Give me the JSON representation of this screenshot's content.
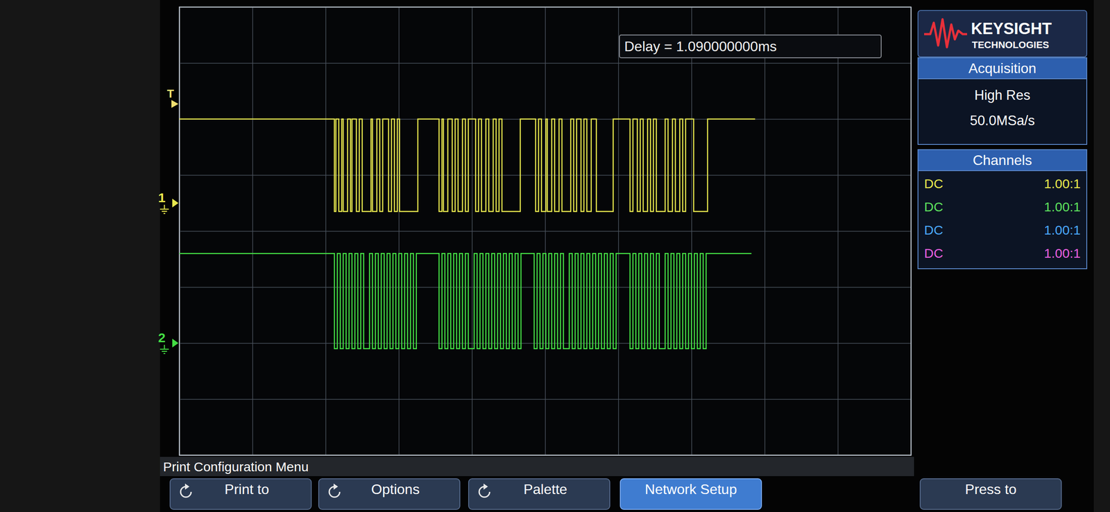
{
  "chart_data": {
    "type": "line",
    "line_style": "step",
    "annotations": [
      "Delay = 1.090000000ms"
    ],
    "xlim": [
      0,
      10
    ],
    "ylim": [
      0,
      8
    ],
    "xticks": [
      0,
      1,
      2,
      3,
      4,
      5,
      6,
      7,
      8,
      9,
      10
    ],
    "yticks": [
      0,
      1,
      2,
      3,
      4,
      5,
      6,
      7,
      8
    ],
    "grid": true,
    "tick_labels": false,
    "trigger": {
      "label": "T",
      "value": 6.27
    },
    "series": [
      {
        "name": "1",
        "color": "#e8e84e",
        "offset": 4.5,
        "x": [
          0,
          2.12,
          2.14,
          2.18,
          2.22,
          2.24,
          2.3,
          2.34,
          2.36,
          2.42,
          2.46,
          2.5,
          2.62,
          2.64,
          2.7,
          2.74,
          2.78,
          2.86,
          2.9,
          2.94,
          2.98,
          3.01,
          3.26,
          3.55,
          3.59,
          3.61,
          3.67,
          3.73,
          3.77,
          3.81,
          3.87,
          3.91,
          3.95,
          4.05,
          4.09,
          4.13,
          4.19,
          4.23,
          4.29,
          4.33,
          4.37,
          4.41,
          4.66,
          4.87,
          4.91,
          4.95,
          5.01,
          5.03,
          5.09,
          5.13,
          5.19,
          5.23,
          5.35,
          5.39,
          5.43,
          5.49,
          5.53,
          5.57,
          5.63,
          5.7,
          5.93,
          6.16,
          6.2,
          6.26,
          6.3,
          6.34,
          6.4,
          6.44,
          6.48,
          6.52,
          6.64,
          6.68,
          6.74,
          6.78,
          6.84,
          6.88,
          6.92,
          7.03,
          7.22,
          7.87
        ],
        "values": [
          6.0,
          4.35,
          6.0,
          4.35,
          6.0,
          4.35,
          6.0,
          4.35,
          6.0,
          4.35,
          6.0,
          4.35,
          6.0,
          4.35,
          6.0,
          4.35,
          6.0,
          4.35,
          6.0,
          4.35,
          6.0,
          4.35,
          6.0,
          4.35,
          6.0,
          4.35,
          6.0,
          4.35,
          6.0,
          4.35,
          6.0,
          4.35,
          6.0,
          4.35,
          6.0,
          4.35,
          6.0,
          4.35,
          6.0,
          4.35,
          6.0,
          4.35,
          6.0,
          4.35,
          6.0,
          4.35,
          6.0,
          4.35,
          6.0,
          4.35,
          6.0,
          4.35,
          6.0,
          4.35,
          6.0,
          4.35,
          6.0,
          4.35,
          6.0,
          4.35,
          6.0,
          4.35,
          6.0,
          4.35,
          6.0,
          4.35,
          6.0,
          4.35,
          6.0,
          4.35,
          6.0,
          4.35,
          6.0,
          4.35,
          6.0,
          4.35,
          6.0,
          4.35,
          6.0,
          6.0
        ]
      },
      {
        "name": "2",
        "color": "#44dd44",
        "offset": 2.0,
        "x": [
          0,
          2.12,
          2.16,
          2.2,
          2.24,
          2.28,
          2.32,
          2.36,
          2.4,
          2.44,
          2.48,
          2.52,
          2.6,
          2.64,
          2.68,
          2.72,
          2.76,
          2.8,
          2.84,
          2.88,
          2.92,
          2.96,
          3.0,
          3.04,
          3.08,
          3.12,
          3.16,
          3.2,
          3.24,
          3.55,
          3.59,
          3.63,
          3.67,
          3.71,
          3.75,
          3.79,
          3.83,
          3.87,
          3.91,
          3.95,
          4.03,
          4.07,
          4.11,
          4.15,
          4.19,
          4.23,
          4.27,
          4.31,
          4.35,
          4.39,
          4.43,
          4.47,
          4.51,
          4.55,
          4.59,
          4.63,
          4.67,
          4.85,
          4.89,
          4.93,
          4.97,
          5.01,
          5.05,
          5.09,
          5.13,
          5.17,
          5.21,
          5.25,
          5.33,
          5.37,
          5.41,
          5.45,
          5.49,
          5.53,
          5.57,
          5.61,
          5.65,
          5.69,
          5.73,
          5.77,
          5.81,
          5.85,
          5.89,
          5.93,
          5.97,
          6.16,
          6.2,
          6.24,
          6.28,
          6.32,
          6.36,
          6.4,
          6.44,
          6.48,
          6.52,
          6.56,
          6.64,
          6.68,
          6.72,
          6.76,
          6.8,
          6.84,
          6.88,
          6.92,
          6.96,
          7.0,
          7.04,
          7.08,
          7.12,
          7.16,
          7.2,
          7.82
        ],
        "values": [
          3.6,
          1.9,
          3.6,
          1.9,
          3.6,
          1.9,
          3.6,
          1.9,
          3.6,
          1.9,
          3.6,
          1.9,
          3.6,
          1.9,
          3.6,
          1.9,
          3.6,
          1.9,
          3.6,
          1.9,
          3.6,
          1.9,
          3.6,
          1.9,
          3.6,
          1.9,
          3.6,
          1.9,
          3.6,
          1.9,
          3.6,
          1.9,
          3.6,
          1.9,
          3.6,
          1.9,
          3.6,
          1.9,
          3.6,
          1.9,
          3.6,
          1.9,
          3.6,
          1.9,
          3.6,
          1.9,
          3.6,
          1.9,
          3.6,
          1.9,
          3.6,
          1.9,
          3.6,
          1.9,
          3.6,
          1.9,
          3.6,
          1.9,
          3.6,
          1.9,
          3.6,
          1.9,
          3.6,
          1.9,
          3.6,
          1.9,
          3.6,
          1.9,
          3.6,
          1.9,
          3.6,
          1.9,
          3.6,
          1.9,
          3.6,
          1.9,
          3.6,
          1.9,
          3.6,
          1.9,
          3.6,
          1.9,
          3.6,
          1.9,
          3.6,
          1.9,
          3.6,
          1.9,
          3.6,
          1.9,
          3.6,
          1.9,
          3.6,
          1.9,
          3.6,
          1.9,
          3.6,
          1.9,
          3.6,
          1.9,
          3.6,
          1.9,
          3.6,
          1.9,
          3.6,
          1.9,
          3.6,
          1.9,
          3.6,
          1.9,
          3.6,
          3.6
        ]
      }
    ]
  },
  "side_panel": {
    "brand": "KEYSIGHT",
    "brand_sub": "TECHNOLOGIES",
    "acquisition": {
      "title": "Acquisition",
      "lines": [
        "High Res",
        "50.0MSa/s"
      ]
    },
    "channels": {
      "title": "Channels",
      "rows": [
        {
          "coupling": "DC",
          "probe": "1.00:1",
          "color": "#e8e84e"
        },
        {
          "coupling": "DC",
          "probe": "1.00:1",
          "color": "#5ee05e"
        },
        {
          "coupling": "DC",
          "probe": "1.00:1",
          "color": "#4aa8ff"
        },
        {
          "coupling": "DC",
          "probe": "1.00:1",
          "color": "#e860e0"
        }
      ]
    }
  },
  "menu": {
    "title": "Print Configuration Menu",
    "softkeys": [
      "Print to",
      "Options",
      "Palette",
      "Network Setup",
      "Press to"
    ]
  }
}
